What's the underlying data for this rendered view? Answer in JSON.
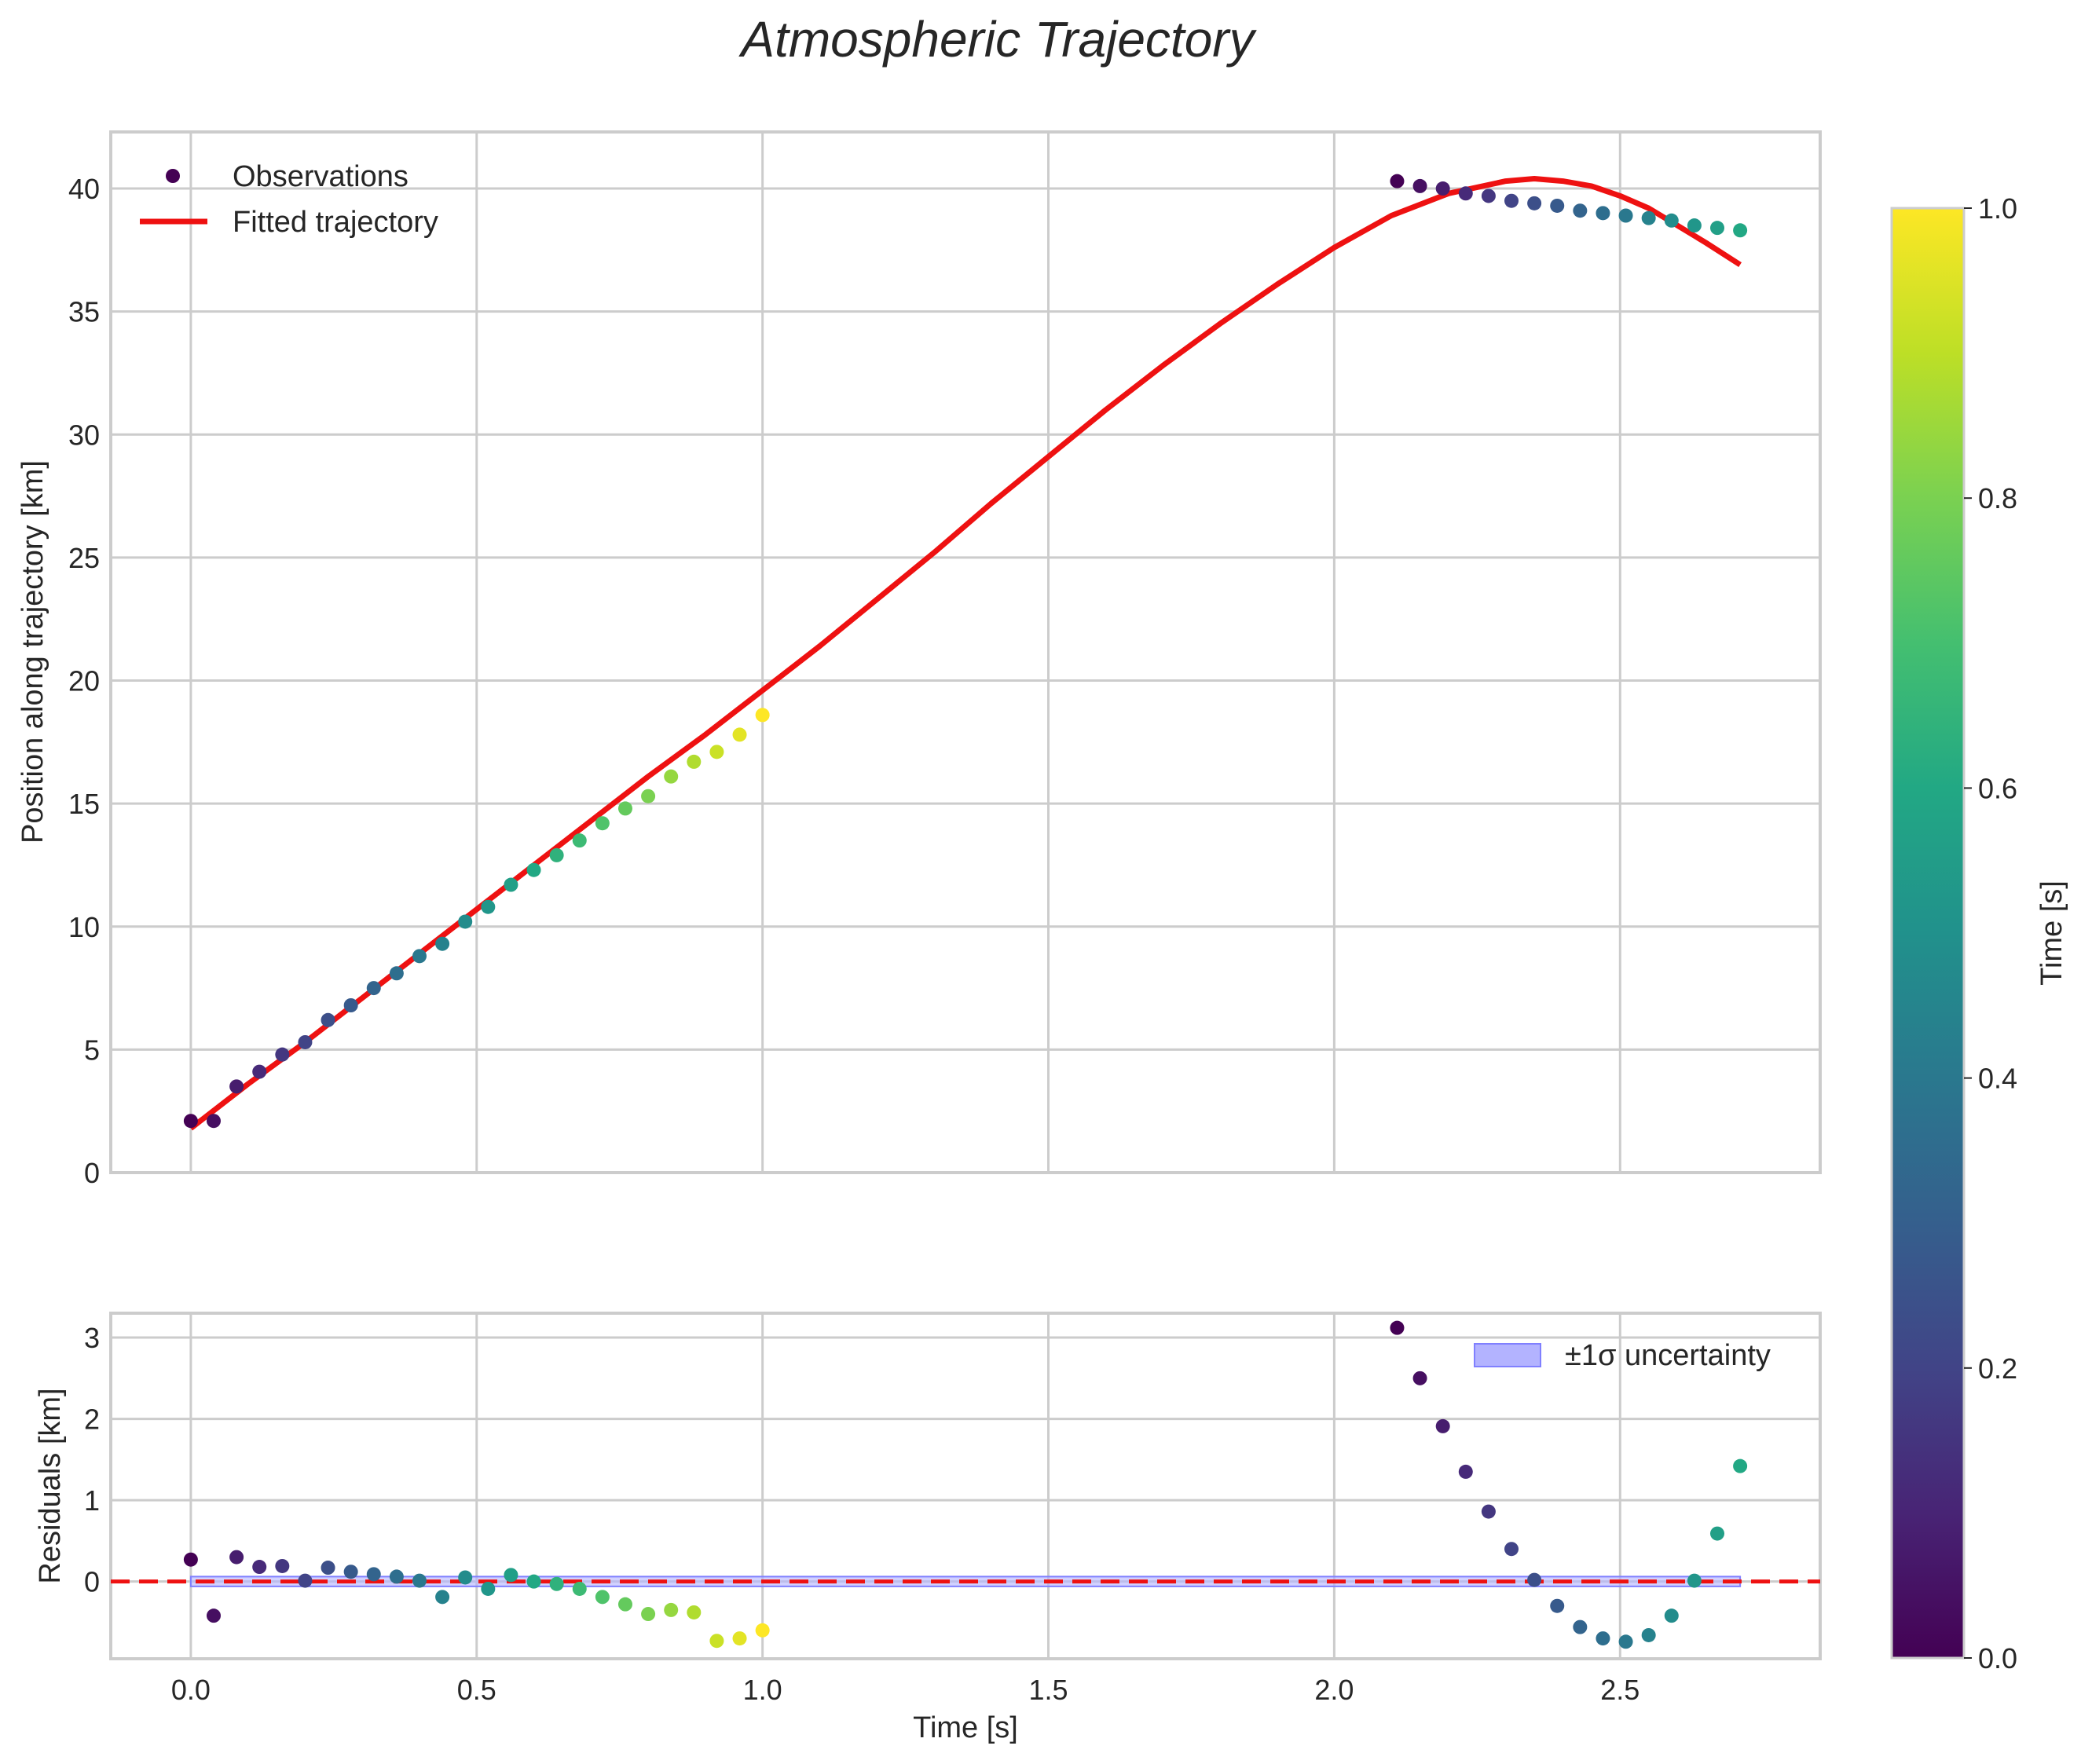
{
  "chart_data": [
    {
      "type": "scatter",
      "title": "Atmospheric Trajectory",
      "xlabel": "",
      "ylabel": "Position along trajectory [km]",
      "xlim": [
        -0.14,
        2.85
      ],
      "ylim": [
        0,
        42.3
      ],
      "xticks": [
        "0.0",
        "0.5",
        "1.0",
        "1.5",
        "2.0",
        "2.5"
      ],
      "yticks": [
        "0",
        "5",
        "10",
        "15",
        "20",
        "25",
        "30",
        "35",
        "40"
      ],
      "grid": true,
      "legend_position": "upper-left",
      "legend": [
        "Observations",
        "Fitted trajectory"
      ],
      "series": [
        {
          "name": "Observations",
          "x": [
            0.0,
            0.04,
            0.08,
            0.12,
            0.16,
            0.2,
            0.24,
            0.28,
            0.32,
            0.36,
            0.4,
            0.44,
            0.48,
            0.52,
            0.56,
            0.6,
            0.64,
            0.68,
            0.72,
            0.76,
            0.8,
            0.84,
            0.88,
            0.92,
            0.96,
            1.0,
            2.11,
            2.15,
            2.19,
            2.23,
            2.27,
            2.31,
            2.35,
            2.39,
            2.43,
            2.47,
            2.51,
            2.55,
            2.59,
            2.63,
            2.67,
            2.71
          ],
          "y": [
            2.1,
            2.1,
            3.5,
            4.1,
            4.8,
            5.3,
            6.2,
            6.8,
            7.5,
            8.1,
            8.8,
            9.3,
            10.2,
            10.8,
            11.7,
            12.3,
            12.9,
            13.5,
            14.2,
            14.8,
            15.3,
            16.1,
            16.7,
            17.1,
            17.8,
            18.6,
            40.3,
            40.1,
            40.0,
            39.8,
            39.7,
            39.5,
            39.4,
            39.3,
            39.1,
            39.0,
            38.9,
            38.8,
            38.7,
            38.5,
            38.4,
            38.3
          ],
          "color_values": [
            0.0,
            0.04,
            0.08,
            0.12,
            0.16,
            0.2,
            0.24,
            0.28,
            0.32,
            0.36,
            0.4,
            0.44,
            0.48,
            0.52,
            0.56,
            0.6,
            0.64,
            0.68,
            0.72,
            0.76,
            0.8,
            0.84,
            0.88,
            0.92,
            0.96,
            1.0,
            0.0,
            0.04,
            0.08,
            0.12,
            0.16,
            0.2,
            0.24,
            0.28,
            0.32,
            0.36,
            0.4,
            0.44,
            0.48,
            0.52,
            0.56,
            0.6
          ],
          "colormap": "viridis"
        },
        {
          "name": "Fitted trajectory",
          "type": "line",
          "color": "#ee1111",
          "x": [
            0.0,
            0.1,
            0.2,
            0.3,
            0.4,
            0.5,
            0.6,
            0.7,
            0.8,
            0.9,
            1.0,
            1.1,
            1.2,
            1.3,
            1.4,
            1.5,
            1.6,
            1.7,
            1.8,
            1.9,
            2.0,
            2.1,
            2.2,
            2.3,
            2.35,
            2.4,
            2.45,
            2.5,
            2.55,
            2.6,
            2.65,
            2.71
          ],
          "y": [
            1.8,
            3.6,
            5.3,
            7.1,
            8.9,
            10.7,
            12.5,
            14.3,
            16.1,
            17.8,
            19.6,
            21.4,
            23.3,
            25.2,
            27.2,
            29.1,
            31.0,
            32.8,
            34.5,
            36.1,
            37.6,
            38.9,
            39.8,
            40.3,
            40.4,
            40.3,
            40.1,
            39.7,
            39.2,
            38.5,
            37.8,
            36.9
          ]
        }
      ]
    },
    {
      "type": "scatter",
      "title": "",
      "xlabel": "Time [s]",
      "ylabel": "Residuals [km]",
      "xlim": [
        -0.14,
        2.85
      ],
      "ylim": [
        -0.95,
        3.3
      ],
      "xticks": [
        "0.0",
        "0.5",
        "1.0",
        "1.5",
        "2.0",
        "2.5"
      ],
      "yticks": [
        "0",
        "1",
        "2",
        "3"
      ],
      "grid": true,
      "legend_position": "upper-right",
      "legend": [
        "±1σ uncertainty"
      ],
      "zero_line_color": "#ee1111",
      "band_color": "#8080ff",
      "band_halfwidth": 0.06,
      "band_x": [
        0.0,
        2.71
      ],
      "series": [
        {
          "name": "Residuals",
          "x": [
            0.0,
            0.04,
            0.08,
            0.12,
            0.16,
            0.2,
            0.24,
            0.28,
            0.32,
            0.36,
            0.4,
            0.44,
            0.48,
            0.52,
            0.56,
            0.6,
            0.64,
            0.68,
            0.72,
            0.76,
            0.8,
            0.84,
            0.88,
            0.92,
            0.96,
            1.0,
            2.11,
            2.15,
            2.19,
            2.23,
            2.27,
            2.31,
            2.35,
            2.39,
            2.43,
            2.47,
            2.51,
            2.55,
            2.59,
            2.63,
            2.67,
            2.71
          ],
          "y": [
            0.27,
            -0.42,
            0.3,
            0.18,
            0.19,
            0.01,
            0.17,
            0.12,
            0.09,
            0.06,
            0.01,
            -0.19,
            0.05,
            -0.09,
            0.08,
            0.0,
            -0.03,
            -0.09,
            -0.19,
            -0.28,
            -0.4,
            -0.35,
            -0.38,
            -0.73,
            -0.7,
            -0.6,
            3.12,
            2.5,
            1.91,
            1.35,
            0.86,
            0.4,
            0.02,
            -0.3,
            -0.56,
            -0.7,
            -0.74,
            -0.66,
            -0.42,
            0.01,
            0.59,
            1.42
          ],
          "color_values": [
            0.0,
            0.04,
            0.08,
            0.12,
            0.16,
            0.2,
            0.24,
            0.28,
            0.32,
            0.36,
            0.4,
            0.44,
            0.48,
            0.52,
            0.56,
            0.6,
            0.64,
            0.68,
            0.72,
            0.76,
            0.8,
            0.84,
            0.88,
            0.92,
            0.96,
            1.0,
            0.0,
            0.04,
            0.08,
            0.12,
            0.16,
            0.2,
            0.24,
            0.28,
            0.32,
            0.36,
            0.4,
            0.44,
            0.48,
            0.52,
            0.56,
            0.6
          ],
          "colormap": "viridis"
        }
      ]
    }
  ],
  "colorbar": {
    "label": "Time [s]",
    "range": [
      0.0,
      1.0
    ],
    "ticks": [
      "0.0",
      "0.2",
      "0.4",
      "0.6",
      "0.8",
      "1.0"
    ],
    "colormap": "viridis"
  }
}
